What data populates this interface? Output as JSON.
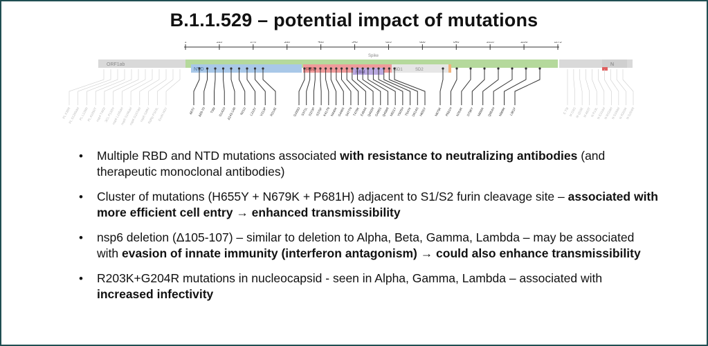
{
  "title": "B.1.1.529 – potential impact of mutations",
  "diagram": {
    "ruler_ticks": [
      "1",
      "335",
      "270",
      "380",
      "460",
      "540",
      "620",
      "680",
      "840",
      "1010",
      "1100",
      "1273"
    ],
    "domains": {
      "orf1ab": "ORF1ab",
      "spike": "Spike",
      "ntd": "NTD",
      "rbd": "RBD",
      "rbm": "RBM",
      "sd1": "SD1",
      "sd2": "SD2",
      "n": "N"
    },
    "spike_mutations": [
      "A67V",
      "Δ69-70",
      "T95I",
      "G142D",
      "Δ143-145",
      "N211I",
      "L212V",
      "V213P",
      "R214E",
      "G339D",
      "S371L",
      "S373P",
      "S375F",
      "K417N",
      "N440K",
      "G446S",
      "S477N",
      "T478K",
      "E484A",
      "Q493R",
      "G496S",
      "Q498R",
      "N501Y",
      "Y505H",
      "T547K",
      "D614G",
      "H655Y",
      "N679K",
      "P681H",
      "N764K",
      "D796Y",
      "N856K",
      "Q954H",
      "N969K",
      "L981F"
    ],
    "orf1ab_mutations": [
      "PL K38R",
      "PL S1265del",
      "PL L1266I",
      "PL A1892T",
      "nsp4 T492I",
      "3CL P132H",
      "nsp6 L105del",
      "nsp6 S106del",
      "nsp6 G107del",
      "nsp6 I189V",
      "RdRp P323L",
      "ExoN I42V"
    ],
    "other_mutations": [
      "E T9I",
      "M D3G",
      "M Q19E",
      "M A63T",
      "N P13L",
      "N E31del",
      "N R32del",
      "N S33del",
      "N R203K",
      "N G204R"
    ]
  },
  "bullets": [
    {
      "parts": [
        {
          "text": "Multiple RBD and NTD mutations associated ",
          "bold": false
        },
        {
          "text": "with resistance to neutralizing antibodies",
          "bold": true
        },
        {
          "text": " (and therapeutic monoclonal antibodies)",
          "bold": false
        }
      ]
    },
    {
      "parts": [
        {
          "text": "Cluster of mutations (H655Y + N679K + P681H) adjacent to S1/S2 furin cleavage site – ",
          "bold": false
        },
        {
          "text": "associated with more efficient cell entry → enhanced transmissibility",
          "bold": true
        }
      ]
    },
    {
      "parts": [
        {
          "text": "nsp6 deletion (Δ105-107) – similar to deletion to Alpha, Beta, Gamma, Lambda – may be associated with ",
          "bold": false
        },
        {
          "text": "evasion of innate immunity (interferon antagonism) → could also enhance transmissibility",
          "bold": true
        }
      ]
    },
    {
      "parts": [
        {
          "text": "R203K+G204R mutations in nucleocapsid - seen in Alpha, Gamma, Lambda – associated with ",
          "bold": false
        },
        {
          "text": "increased infectivity",
          "bold": true
        }
      ]
    }
  ]
}
